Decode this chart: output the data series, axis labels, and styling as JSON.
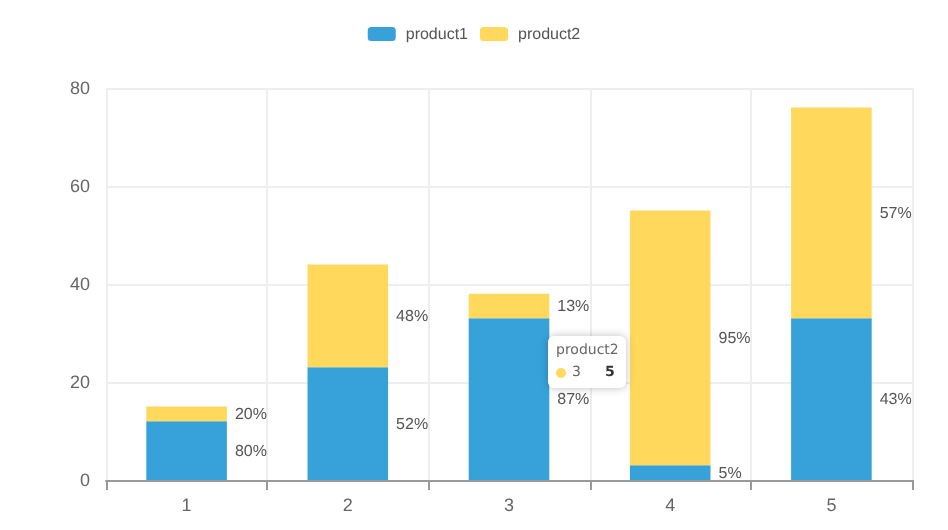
{
  "chart_data": {
    "type": "bar",
    "stacked": true,
    "categories": [
      "1",
      "2",
      "3",
      "4",
      "5"
    ],
    "series": [
      {
        "name": "product1",
        "color": "#37a2da",
        "values": [
          12,
          23,
          33,
          3,
          33
        ]
      },
      {
        "name": "product2",
        "color": "#ffd85c",
        "values": [
          3,
          21,
          5,
          52,
          43
        ]
      }
    ],
    "ylim": [
      0,
      80
    ],
    "yticks": [
      0,
      20,
      40,
      60,
      80
    ],
    "grid": true,
    "legend": "top",
    "annotations": [
      "80%",
      "20%",
      "52%",
      "48%",
      "87%",
      "13%",
      "5%",
      "95%",
      "43%",
      "57%",
      "product2",
      "3",
      "5"
    ]
  }
}
